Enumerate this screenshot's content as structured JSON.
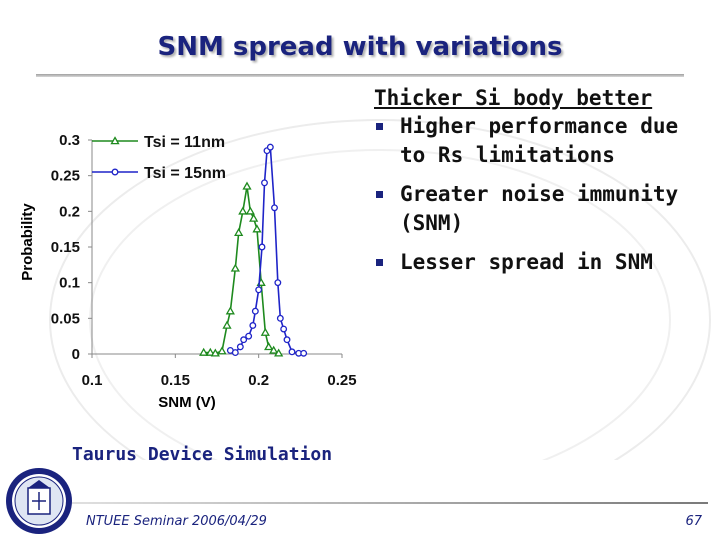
{
  "slide": {
    "title": "SNM spread with variations",
    "simulation_note": "Taurus Device Simulation",
    "footer_left": "NTUEE Seminar 2006/04/29",
    "page_number": "67"
  },
  "right_panel": {
    "heading": "Thicker Si body better",
    "bullets": [
      {
        "label": "Higher performance due to Rs limitations"
      },
      {
        "label": "Greater noise immunity (SNM)"
      },
      {
        "label": "Lesser spread in SNM"
      }
    ]
  },
  "colors": {
    "title": "#1a237e",
    "bullet": "#1a237e",
    "series_11nm": "#1e8a1e",
    "series_15nm": "#1f24c8"
  },
  "chart_data": {
    "type": "line",
    "xlabel": "SNM (V)",
    "ylabel": "Probability",
    "xlim": [
      0.1,
      0.25
    ],
    "ylim": [
      0,
      0.3
    ],
    "xticks": [
      "0.1",
      "0.15",
      "0.2",
      "0.25"
    ],
    "yticks": [
      "0",
      "0.05",
      "0.1",
      "0.15",
      "0.2",
      "0.25",
      "0.3"
    ],
    "grid": false,
    "legend_position": "top-left",
    "series": [
      {
        "name": "Tsi = 11nm",
        "marker": "triangle",
        "color": "#1e8a1e",
        "x": [
          0.167,
          0.171,
          0.174,
          0.178,
          0.181,
          0.183,
          0.186,
          0.188,
          0.1905,
          0.193,
          0.195,
          0.197,
          0.199,
          0.2015,
          0.204,
          0.206,
          0.209,
          0.212
        ],
        "y": [
          0.002,
          0.002,
          0.001,
          0.004,
          0.04,
          0.06,
          0.12,
          0.17,
          0.2,
          0.235,
          0.2,
          0.19,
          0.175,
          0.1,
          0.03,
          0.01,
          0.005,
          0.001
        ]
      },
      {
        "name": "Tsi = 15nm",
        "marker": "circle",
        "color": "#1f24c8",
        "x": [
          0.183,
          0.186,
          0.189,
          0.191,
          0.194,
          0.1965,
          0.198,
          0.2,
          0.202,
          0.2035,
          0.205,
          0.207,
          0.2095,
          0.2115,
          0.213,
          0.215,
          0.217,
          0.22,
          0.224,
          0.227
        ],
        "y": [
          0.005,
          0.002,
          0.01,
          0.02,
          0.025,
          0.04,
          0.06,
          0.09,
          0.15,
          0.24,
          0.285,
          0.29,
          0.205,
          0.1,
          0.05,
          0.035,
          0.02,
          0.003,
          0.001,
          0.001
        ]
      }
    ]
  }
}
